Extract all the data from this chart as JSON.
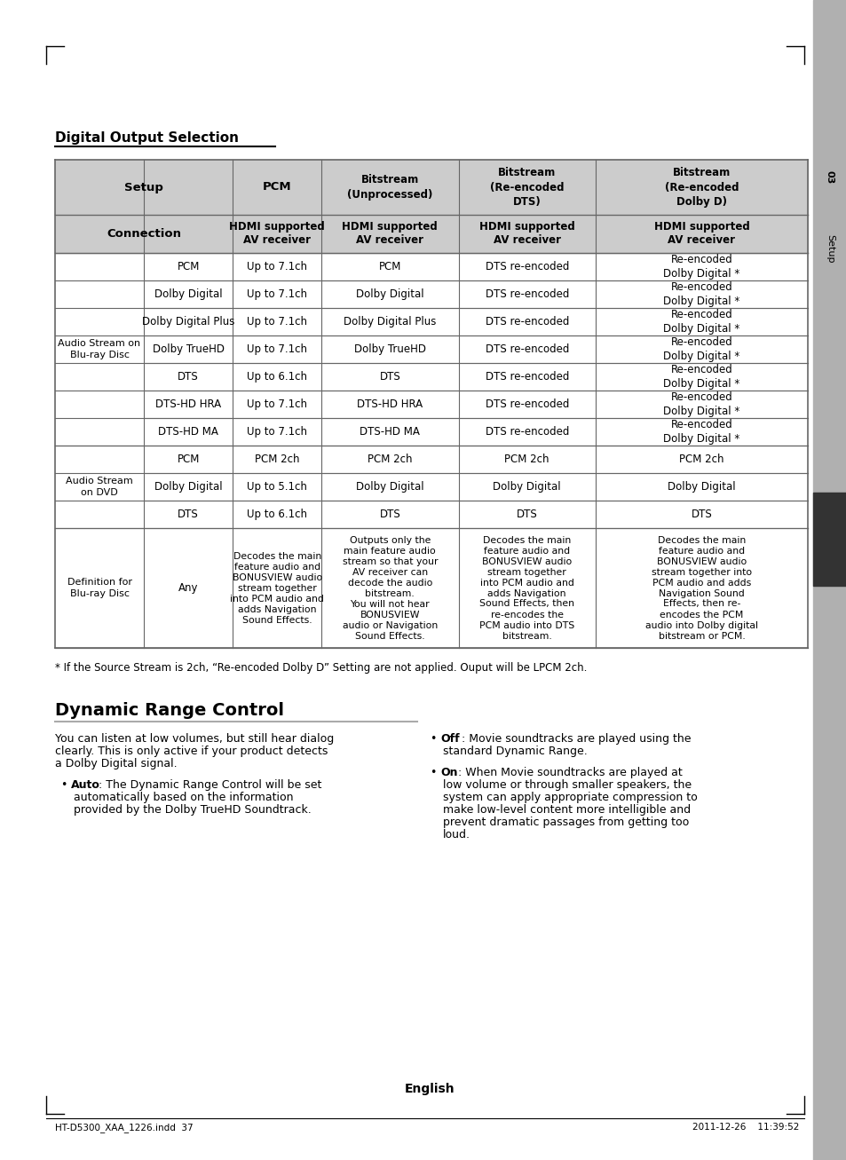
{
  "page_bg": "#ffffff",
  "section_title": "Digital Output Selection",
  "header_bg": "#cccccc",
  "border_color": "#666666",
  "footnote": "* If the Source Stream is 2ch, “Re-encoded Dolby D” Setting are not applied. Ouput will be LPCM 2ch.",
  "drc_title": "Dynamic Range Control",
  "drc_intro_l1": "You can listen at low volumes, but still hear dialog",
  "drc_intro_l2": "clearly. This is only active if your product detects",
  "drc_intro_l3": "a Dolby Digital signal.",
  "drc_auto_bold": "Auto",
  "drc_auto_text": " : The Dynamic Range Control will be set\nautomatically based on the information\nprovided by the Dolby TrueHD Soundtrack.",
  "drc_off_bold": "Off",
  "drc_off_text": " : Movie soundtracks are played using the\nstandard Dynamic Range.",
  "drc_on_bold": "On",
  "drc_on_text": " : When Movie soundtracks are played at\nlow volume or through smaller speakers, the\nsystem can apply appropriate compression to\nmake low-level content more intelligible and\nprevent dramatic passages from getting too\nloud.",
  "footer_left": "HT-D5300_XAA_1226.indd  37",
  "footer_right": "2011-12-26    11:39:52",
  "footer_english": "English",
  "sidebar_color": "#b0b0b0",
  "sidebar_dark_color": "#333333",
  "sidebar_text_03": "03",
  "sidebar_text_setup": "Setup"
}
